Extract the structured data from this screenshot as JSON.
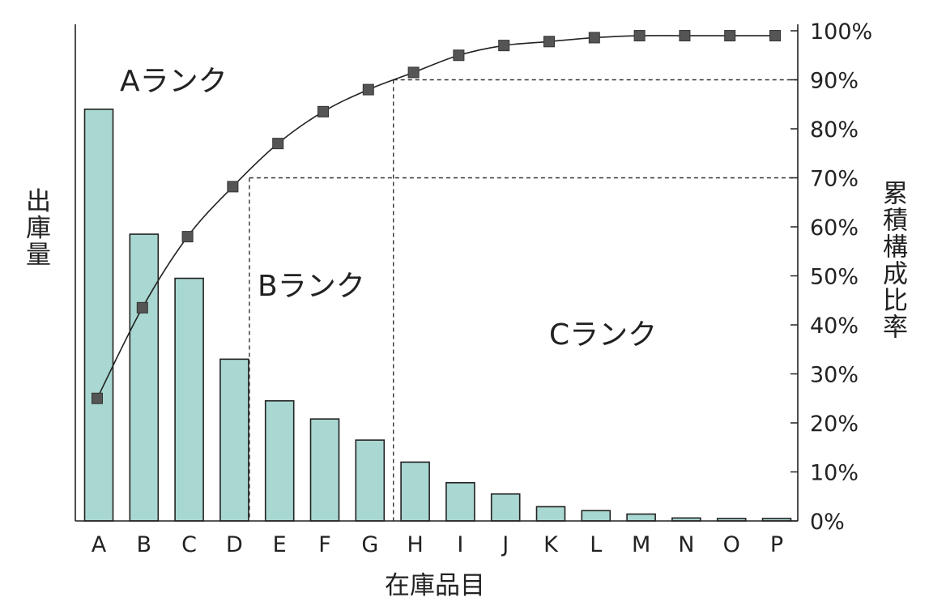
{
  "chart_data": {
    "type": "bar",
    "categories": [
      "A",
      "B",
      "C",
      "D",
      "E",
      "F",
      "G",
      "H",
      "I",
      "J",
      "K",
      "L",
      "M",
      "N",
      "O",
      "P"
    ],
    "series": [
      {
        "values": [
          84,
          58.5,
          49.5,
          33,
          24.5,
          20.8,
          16.5,
          12,
          7.8,
          5.5,
          2.9,
          2.1,
          1.4,
          0.6,
          0.5,
          0.5
        ]
      },
      {
        "type": "line",
        "axis": "right",
        "values": [
          25,
          43.5,
          58,
          68.2,
          77,
          83.5,
          88,
          91.5,
          95,
          97,
          97.8,
          98.6,
          99,
          99,
          99,
          99
        ]
      }
    ],
    "y_right_ticks": [
      "0%",
      "10%",
      "20%",
      "30%",
      "40%",
      "50%",
      "60%",
      "70%",
      "80%",
      "90%",
      "100%"
    ],
    "ylim_right": [
      0,
      100
    ],
    "ylim_left": [
      0,
      100
    ],
    "xlabel": "在庫品目",
    "ylabel_left": "出庫量",
    "ylabel_right": "累積構成比率",
    "annotations": [
      "Aランク",
      "Bランク",
      "Cランク"
    ],
    "thresholds": [
      70,
      90
    ],
    "grid": false,
    "colors": {
      "bar": "#a9d7d1",
      "bar_stroke": "#222222",
      "line": "#222222",
      "marker": "#555555"
    }
  }
}
